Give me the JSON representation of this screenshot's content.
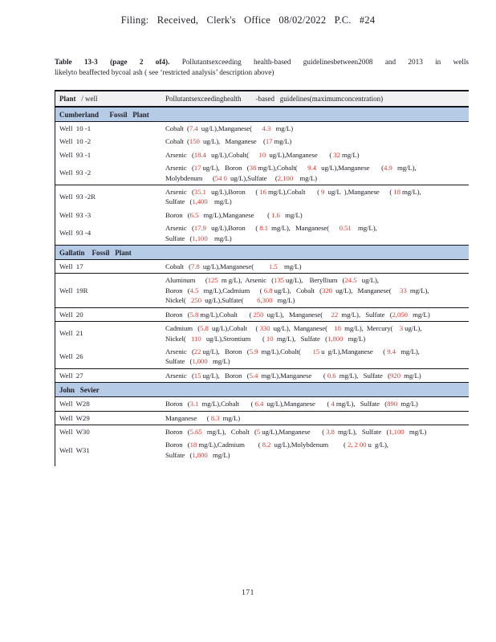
{
  "page": {
    "header": "Filing: Received, Clerk's Office 08/02/2022 P.C. #24",
    "page_number": "171"
  },
  "colors": {
    "red": "#e8362a",
    "section_bg": "#b6cbe5",
    "header_row_bg": "#f1f1f1",
    "ink": "#20202a",
    "border": "#15151d"
  },
  "caption": {
    "bold": "Table 13-3 (page 2 of4).",
    "rest": " Pollutantsexceeding health-based guidelinesbetween2008 and 2013 in wells",
    "line2": "likelyto  beaffected   bycoal  ash  (  see ‘restricted analysis’ description above)"
  },
  "table": {
    "col1_bold": "Plant",
    "col1_rest": "   / well",
    "col2_header": "Pollutantsexceedinghealth        -based   guidelines(maximumconcentration)",
    "sections": [
      {
        "name": "Cumberland      Fossil   Plant",
        "rows": [
          {
            "well": "Well  10 -1",
            "sep": false,
            "lines": [
              [
                [
                  "Cobalt  (",
                  0
                ],
                [
                  "7.4",
                  1
                ],
                [
                  "  ug/L),Manganese(      ",
                  0
                ],
                [
                  "4.3",
                  1
                ],
                [
                  "   mg/L)",
                  0
                ]
              ]
            ]
          },
          {
            "well": "Well  10 -2",
            "sep": false,
            "lines": [
              [
                [
                  "Cobalt  (",
                  0
                ],
                [
                  "150",
                  1
                ],
                [
                  "  ug/L),   Manganese    (",
                  0
                ],
                [
                  "17",
                  1
                ],
                [
                  " mg/L)",
                  0
                ]
              ]
            ]
          },
          {
            "well": "Well  93 -1",
            "sep": false,
            "lines": [
              [
                [
                  "Arsenic   (",
                  0
                ],
                [
                  "18.4",
                  1
                ],
                [
                  "   ug/L),Cobalt(      ",
                  0
                ],
                [
                  "10",
                  1
                ],
                [
                  "  ug/L),Manganese       ( ",
                  0
                ],
                [
                  "32",
                  1
                ],
                [
                  " mg/L)",
                  0
                ]
              ]
            ]
          },
          {
            "well": "Well  93 -2",
            "sep": false,
            "lines": [
              [
                [
                  "Arsenic   (",
                  0
                ],
                [
                  "17",
                  1
                ],
                [
                  " ug/L),   Boron   (",
                  0
                ],
                [
                  "38",
                  1
                ],
                [
                  " mg/L),Cobalt(      ",
                  0
                ],
                [
                  "9.4",
                  1
                ],
                [
                  "   ug/L),Manganese       (",
                  0
                ],
                [
                  "4.9",
                  1
                ],
                [
                  "   mg/L),",
                  0
                ]
              ],
              [
                [
                  "Molybdenum      (",
                  0
                ],
                [
                  "54 0",
                  1
                ],
                [
                  "  ug/L),Sulfate     (",
                  0
                ],
                [
                  "2,100",
                  1
                ],
                [
                  "    mg/L)",
                  0
                ]
              ]
            ]
          },
          {
            "well": "Well  93 -2R",
            "sep": true,
            "lines": [
              [
                [
                  "Arsenic   (",
                  0
                ],
                [
                  "35.1",
                  1
                ],
                [
                  "   ug/L),Boron      ( ",
                  0
                ],
                [
                  "16",
                  1
                ],
                [
                  " mg/L),Cobalt       ( ",
                  0
                ],
                [
                  "9",
                  1
                ],
                [
                  "  ug/L  ),Manganese      ( ",
                  0
                ],
                [
                  "18",
                  1
                ],
                [
                  " mg/L),",
                  0
                ]
              ],
              [
                [
                  "Sulfate   (",
                  0
                ],
                [
                  "1,400",
                  1
                ],
                [
                  "    mg/L)",
                  0
                ]
              ]
            ]
          },
          {
            "well": "Well  93 -3",
            "sep": false,
            "lines": [
              [
                [
                  "Boron   (",
                  0
                ],
                [
                  "6.5",
                  1
                ],
                [
                  "   mg/L),Manganese        ( ",
                  0
                ],
                [
                  "1.6",
                  1
                ],
                [
                  "   mg/L)",
                  0
                ]
              ]
            ]
          },
          {
            "well": "Well  93 -4",
            "sep": false,
            "lines": [
              [
                [
                  "Arsenic   (",
                  0
                ],
                [
                  "17.9",
                  1
                ],
                [
                  "   ug/L),Boron      ( ",
                  0
                ],
                [
                  "8.1",
                  1
                ],
                [
                  "  mg/L),   Manganese(      ",
                  0
                ],
                [
                  "0.51",
                  1
                ],
                [
                  "    mg/L),",
                  0
                ]
              ],
              [
                [
                  "Sulfate   (",
                  0
                ],
                [
                  "1,100",
                  1
                ],
                [
                  "    mg/L)",
                  0
                ]
              ]
            ]
          }
        ]
      },
      {
        "name": "Gallatin    Fossil   Plant",
        "rows": [
          {
            "well": "Well  17",
            "sep": false,
            "lines": [
              [
                [
                  "Cobalt   (",
                  0
                ],
                [
                  "7.8",
                  1
                ],
                [
                  "  ug/L),Manganese(         ",
                  0
                ],
                [
                  "1.5",
                  1
                ],
                [
                  "    mg/L)",
                  0
                ]
              ]
            ]
          },
          {
            "well": "Well  19R",
            "sep": true,
            "lines": [
              [
                [
                  "Aluminum      (",
                  0
                ],
                [
                  "125",
                  1
                ],
                [
                  "  m g/L),  Arsenic   (",
                  0
                ],
                [
                  "135",
                  1
                ],
                [
                  " ug/L),    Beryllium   (",
                  0
                ],
                [
                  "24.5",
                  1
                ],
                [
                  "   ug/L),",
                  0
                ]
              ],
              [
                [
                  "Boron   (",
                  0
                ],
                [
                  "4.5",
                  1
                ],
                [
                  "   mg/L),Cadmium      ( ",
                  0
                ],
                [
                  "6.8",
                  1
                ],
                [
                  " ug/L),   Cobalt   (",
                  0
                ],
                [
                  "320",
                  1
                ],
                [
                  "  ug/L),   Manganese(     ",
                  0
                ],
                [
                  "33",
                  1
                ],
                [
                  "  mg/L),",
                  0
                ]
              ],
              [
                [
                  "Nickel(   ",
                  0
                ],
                [
                  "250",
                  1
                ],
                [
                  "  ug/L),Sulfate(        ",
                  0
                ],
                [
                  "6,300",
                  1
                ],
                [
                  "   mg/L)",
                  0
                ]
              ]
            ]
          },
          {
            "well": "Well  20",
            "sep": true,
            "lines": [
              [
                [
                  "Boron   (",
                  0
                ],
                [
                  "5.8",
                  1
                ],
                [
                  " mg/L),Cobalt       ( ",
                  0
                ],
                [
                  "250",
                  1
                ],
                [
                  "  ug/L),   Manganese(     ",
                  0
                ],
                [
                  "22",
                  1
                ],
                [
                  "  mg/L),   Sulfate   (",
                  0
                ],
                [
                  "2,050",
                  1
                ],
                [
                  "   mg/L)",
                  0
                ]
              ]
            ]
          },
          {
            "well": "Well  21",
            "sep": true,
            "lines": [
              [
                [
                  "Cadmium   (",
                  0
                ],
                [
                  "5.8",
                  1
                ],
                [
                  "  ug/L),Cobalt     ( ",
                  0
                ],
                [
                  "330",
                  1
                ],
                [
                  "  ug/L),  Manganese(    ",
                  0
                ],
                [
                  "18",
                  1
                ],
                [
                  "  mg/L),  Mercury(    ",
                  0
                ],
                [
                  "3",
                  1
                ],
                [
                  " ug/L),",
                  0
                ]
              ],
              [
                [
                  "Nickel(   ",
                  0
                ],
                [
                  "110",
                  1
                ],
                [
                  "   ug/L),Strontium       ( ",
                  0
                ],
                [
                  "10",
                  1
                ],
                [
                  "  mg/L),   Sulfate   (",
                  0
                ],
                [
                  "1,800",
                  1
                ],
                [
                  "   mg/L)",
                  0
                ]
              ]
            ]
          },
          {
            "well": "Well  26",
            "sep": false,
            "lines": [
              [
                [
                  "Arsenic   (",
                  0
                ],
                [
                  "22",
                  1
                ],
                [
                  " ug/L),   Boron   (",
                  0
                ],
                [
                  "5.9",
                  1
                ],
                [
                  "  mg/L),Cobalt(       ",
                  0
                ],
                [
                  "15",
                  1
                ],
                [
                  " u  g/L),Manganese      ( ",
                  0
                ],
                [
                  "9.4",
                  1
                ],
                [
                  "   mg/L),",
                  0
                ]
              ],
              [
                [
                  "Sulfate   (",
                  0
                ],
                [
                  "1,000",
                  1
                ],
                [
                  "   mg/L)",
                  0
                ]
              ]
            ]
          },
          {
            "well": "Well  27",
            "sep": true,
            "lines": [
              [
                [
                  "Arsenic   (",
                  0
                ],
                [
                  "15",
                  1
                ],
                [
                  " ug/L),   Boron   (",
                  0
                ],
                [
                  "5.4",
                  1
                ],
                [
                  "  mg/L),Manganese       ( ",
                  0
                ],
                [
                  "0.6",
                  1
                ],
                [
                  "  mg/L),   Sulfate   (",
                  0
                ],
                [
                  "920",
                  1
                ],
                [
                  "  mg/L)",
                  0
                ]
              ]
            ]
          }
        ]
      },
      {
        "name": "John   Sevier",
        "rows": [
          {
            "well": "Well  W28",
            "sep": false,
            "lines": [
              [
                [
                  "Boron   (",
                  0
                ],
                [
                  "3.1",
                  1
                ],
                [
                  "  mg/L),Cobalt       ( ",
                  0
                ],
                [
                  "6.4",
                  1
                ],
                [
                  "  ug/L),Manganese       ( ",
                  0
                ],
                [
                  "4",
                  1
                ],
                [
                  " mg/L),   Sulfate   (",
                  0
                ],
                [
                  "890",
                  1
                ],
                [
                  "  mg/L)",
                  0
                ]
              ]
            ]
          },
          {
            "well": "Well  W29",
            "sep": true,
            "lines": [
              [
                [
                  "Manganese      ( ",
                  0
                ],
                [
                  "8.3",
                  1
                ],
                [
                  "  mg/L)",
                  0
                ]
              ]
            ]
          },
          {
            "well": "Well  W30",
            "sep": true,
            "lines": [
              [
                [
                  "Boron   (",
                  0
                ],
                [
                  "5.65",
                  1
                ],
                [
                  "   mg/L),   Cobalt   (",
                  0
                ],
                [
                  "5",
                  1
                ],
                [
                  " ug/L),Manganese       ( ",
                  0
                ],
                [
                  "3.8",
                  1
                ],
                [
                  "  mg/L),   Sulfate   (",
                  0
                ],
                [
                  "1,100",
                  1
                ],
                [
                  "   mg/L)",
                  0
                ]
              ]
            ]
          },
          {
            "well": "Well  W31",
            "sep": false,
            "lines": [
              [
                [
                  "Boron   (",
                  0
                ],
                [
                  "18",
                  1
                ],
                [
                  " mg/L),Cadmium        ( ",
                  0
                ],
                [
                  "8.2",
                  1
                ],
                [
                  "  ug/L),Molybdenum         ( ",
                  0
                ],
                [
                  "2, 2 00",
                  1
                ],
                [
                  " u  g/L),",
                  0
                ]
              ],
              [
                [
                  "Sulfate   (",
                  0
                ],
                [
                  "1,800",
                  1
                ],
                [
                  "   mg/L)",
                  0
                ]
              ]
            ]
          }
        ]
      }
    ]
  }
}
